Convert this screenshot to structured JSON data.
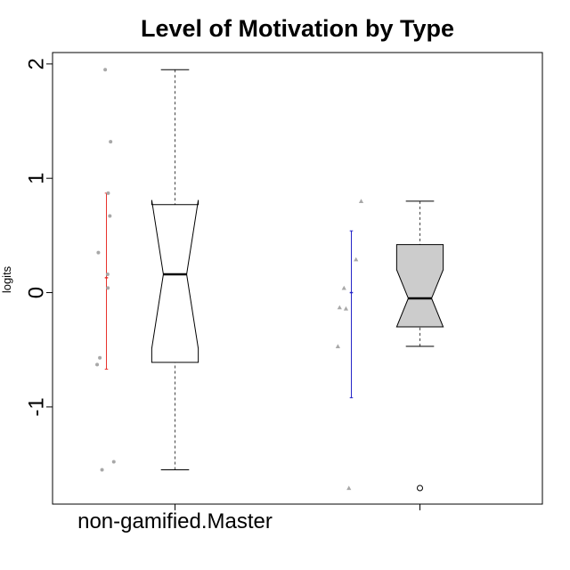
{
  "chart_data": {
    "type": "boxplot",
    "title": "Level of Motivation by Type",
    "ylabel": "logits",
    "xlabel": "",
    "ylim": [
      -1.85,
      2.1
    ],
    "yticks": [
      -1,
      0,
      1,
      2
    ],
    "ytick_labels": [
      "-1",
      "0",
      "1",
      "2"
    ],
    "categories": [
      "non-gamified.Master",
      ""
    ],
    "grid": false,
    "groups": [
      {
        "category": "non-gamified.Master",
        "fill": "#ffffff",
        "box": {
          "whisker_low": -1.55,
          "q1": -0.61,
          "median": 0.16,
          "q3": 0.77,
          "whisker_high": 1.95,
          "notch_low": -0.49,
          "notch_high": 0.81
        },
        "outliers": [],
        "mean_ci": {
          "mean": 0.13,
          "low": -0.67,
          "high": 0.87,
          "color": "#e8322d"
        },
        "points": {
          "marker": "circle",
          "color": "#a8a8a8",
          "values": [
            1.95,
            1.32,
            0.87,
            0.67,
            0.35,
            0.16,
            0.04,
            -0.57,
            -0.63,
            -1.48,
            -1.55
          ],
          "jitter": [
            -0.005,
            0.017,
            0.007,
            0.014,
            -0.033,
            0.005,
            0.006,
            -0.027,
            -0.038,
            0.03,
            -0.018
          ]
        }
      },
      {
        "category": "",
        "fill": "#cccccc",
        "box": {
          "whisker_low": -0.47,
          "q1": -0.3,
          "median": -0.05,
          "q3": 0.42,
          "whisker_high": 0.8,
          "notch_low": -0.3,
          "notch_high": 0.2
        },
        "outliers": [
          -1.71
        ],
        "mean_ci": {
          "mean": 0.0,
          "low": -0.92,
          "high": 0.54,
          "color": "#2626c8"
        },
        "points": {
          "marker": "triangle",
          "color": "#a8a8a8",
          "values": [
            0.8,
            0.29,
            0.04,
            -0.13,
            -0.14,
            -0.47,
            -1.71
          ],
          "jitter": [
            0.04,
            0.019,
            -0.03,
            -0.048,
            -0.022,
            -0.055,
            -0.01
          ]
        }
      }
    ]
  }
}
